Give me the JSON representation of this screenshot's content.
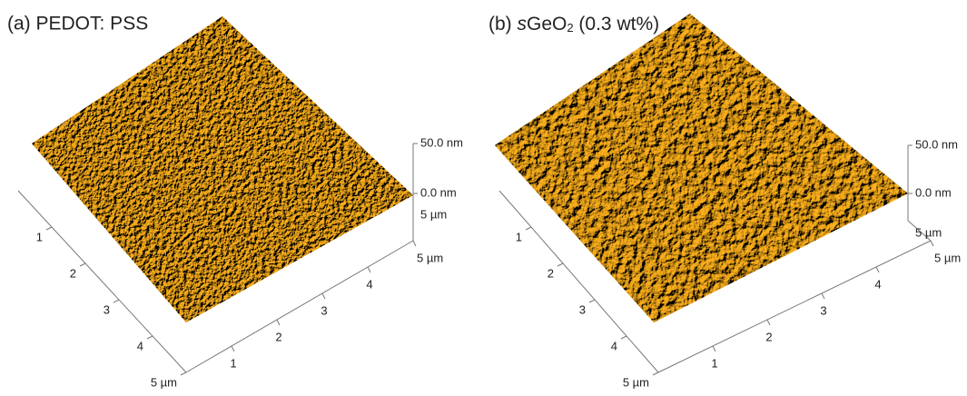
{
  "panels": [
    {
      "title": {
        "text": "(a) PEDOT: PSS"
      },
      "z_axis": {
        "top": "50.0 nm",
        "bottom": "0.0 nm"
      },
      "depth_label": "5 µm",
      "left_axis": [
        "1",
        "2",
        "3",
        "4",
        "5 µm"
      ],
      "right_axis": [
        "1",
        "2",
        "3",
        "4",
        "5 µm"
      ]
    },
    {
      "title": {
        "prefix": "(b) ",
        "italic": "s",
        "formula": "GeO",
        "subscript": "2",
        "suffix": " (0.3 wt%)"
      },
      "z_axis": {
        "top": "50.0 nm",
        "bottom": "0.0 nm"
      },
      "depth_label": "5 µm",
      "left_axis": [
        "1",
        "2",
        "3",
        "4",
        "5 µm"
      ],
      "right_axis": [
        "1",
        "2",
        "3",
        "4",
        "5 µm"
      ]
    }
  ]
}
